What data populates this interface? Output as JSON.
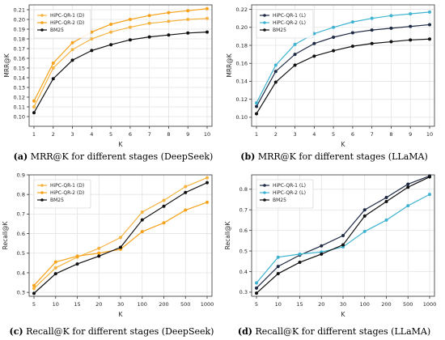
{
  "chart_data": [
    {
      "type": "line",
      "id": "a",
      "caption_letter": "(a)",
      "caption_text": "MRR@K for different stages (DeepSeek)",
      "xlabel": "K",
      "ylabel": "MRR@K",
      "categories": [
        "1",
        "2",
        "3",
        "4",
        "5",
        "6",
        "7",
        "8",
        "9",
        "10"
      ],
      "ylim": [
        0.09,
        0.215
      ],
      "yticks": [
        0.1,
        0.11,
        0.12,
        0.13,
        0.14,
        0.15,
        0.16,
        0.17,
        0.18,
        0.19,
        0.2,
        0.21
      ],
      "ytick_labels": [
        "0.10",
        "0.11",
        "0.12",
        "0.13",
        "0.14",
        "0.15",
        "0.16",
        "0.17",
        "0.18",
        "0.19",
        "0.20",
        "0.21"
      ],
      "grid": true,
      "legend": "top-left",
      "series": [
        {
          "name": "HiPC-QR-1 (D)",
          "color": "#f5b342",
          "values": [
            0.11,
            0.15,
            0.169,
            0.18,
            0.187,
            0.192,
            0.196,
            0.198,
            0.2,
            0.201
          ]
        },
        {
          "name": "HiPC-QR-2 (D)",
          "color": "#f7a21b",
          "values": [
            0.116,
            0.155,
            0.176,
            0.187,
            0.195,
            0.2,
            0.204,
            0.207,
            0.209,
            0.211
          ]
        },
        {
          "name": "BM25",
          "color": "#111111",
          "values": [
            0.104,
            0.139,
            0.158,
            0.168,
            0.174,
            0.179,
            0.182,
            0.184,
            0.186,
            0.187
          ]
        }
      ]
    },
    {
      "type": "line",
      "id": "b",
      "caption_letter": "(b)",
      "caption_text": "MRR@K for different stages (LLaMA)",
      "xlabel": "K",
      "ylabel": "MRR@K",
      "categories": [
        "1",
        "2",
        "3",
        "4",
        "5",
        "6",
        "7",
        "8",
        "9",
        "10"
      ],
      "ylim": [
        0.09,
        0.225
      ],
      "yticks": [
        0.1,
        0.12,
        0.14,
        0.16,
        0.18,
        0.2,
        0.22
      ],
      "ytick_labels": [
        "0.10",
        "0.12",
        "0.14",
        "0.16",
        "0.18",
        "0.20",
        "0.22"
      ],
      "grid": true,
      "legend": "top-left",
      "series": [
        {
          "name": "HiPC-QR-1 (L)",
          "color": "#1e2a44",
          "values": [
            0.112,
            0.151,
            0.17,
            0.182,
            0.189,
            0.194,
            0.197,
            0.199,
            0.201,
            0.203
          ]
        },
        {
          "name": "HiPC-QR-2 (L)",
          "color": "#3fb3d0",
          "values": [
            0.116,
            0.158,
            0.181,
            0.193,
            0.2,
            0.206,
            0.21,
            0.213,
            0.215,
            0.217
          ]
        },
        {
          "name": "BM25",
          "color": "#111111",
          "values": [
            0.104,
            0.139,
            0.158,
            0.168,
            0.174,
            0.179,
            0.182,
            0.184,
            0.186,
            0.187
          ]
        }
      ]
    },
    {
      "type": "line",
      "id": "c",
      "caption_letter": "(c)",
      "caption_text": "Recall@K for different stages (DeepSeek)",
      "xlabel": "K",
      "ylabel": "Recall@K",
      "categories": [
        "5",
        "10",
        "15",
        "20",
        "30",
        "100",
        "200",
        "500",
        "1000"
      ],
      "ylim": [
        0.28,
        0.9
      ],
      "yticks": [
        0.3,
        0.4,
        0.5,
        0.6,
        0.7,
        0.8,
        0.9
      ],
      "ytick_labels": [
        "0.3",
        "0.4",
        "0.5",
        "0.6",
        "0.7",
        "0.8",
        "0.9"
      ],
      "grid": true,
      "legend": "top-left",
      "series": [
        {
          "name": "HiPC-QR-1 (D)",
          "color": "#f5b342",
          "values": [
            0.32,
            0.425,
            0.48,
            0.525,
            0.58,
            0.71,
            0.77,
            0.84,
            0.885
          ]
        },
        {
          "name": "HiPC-QR-2 (D)",
          "color": "#f7a21b",
          "values": [
            0.335,
            0.455,
            0.485,
            0.5,
            0.52,
            0.61,
            0.655,
            0.72,
            0.76
          ]
        },
        {
          "name": "BM25",
          "color": "#111111",
          "values": [
            0.295,
            0.395,
            0.445,
            0.485,
            0.53,
            0.67,
            0.74,
            0.81,
            0.86
          ]
        }
      ]
    },
    {
      "type": "line",
      "id": "d",
      "caption_letter": "(d)",
      "caption_text": "Recall@K for different stages (LLaMA)",
      "xlabel": "K",
      "ylabel": "Recall@K",
      "categories": [
        "5",
        "10",
        "15",
        "20",
        "30",
        "100",
        "200",
        "500",
        "1000"
      ],
      "ylim": [
        0.28,
        0.87
      ],
      "yticks": [
        0.3,
        0.4,
        0.5,
        0.6,
        0.7,
        0.8
      ],
      "ytick_labels": [
        "0.3",
        "0.4",
        "0.5",
        "0.6",
        "0.7",
        "0.8"
      ],
      "grid": true,
      "legend": "top-left",
      "series": [
        {
          "name": "HiPC-QR-1 (L)",
          "color": "#1e2a44",
          "values": [
            0.32,
            0.425,
            0.48,
            0.525,
            0.575,
            0.7,
            0.76,
            0.825,
            0.865
          ]
        },
        {
          "name": "HiPC-QR-2 (L)",
          "color": "#3fb3d0",
          "values": [
            0.345,
            0.47,
            0.485,
            0.495,
            0.52,
            0.595,
            0.65,
            0.72,
            0.775
          ]
        },
        {
          "name": "BM25",
          "color": "#111111",
          "values": [
            0.295,
            0.39,
            0.445,
            0.485,
            0.53,
            0.67,
            0.74,
            0.81,
            0.86
          ]
        }
      ]
    }
  ]
}
